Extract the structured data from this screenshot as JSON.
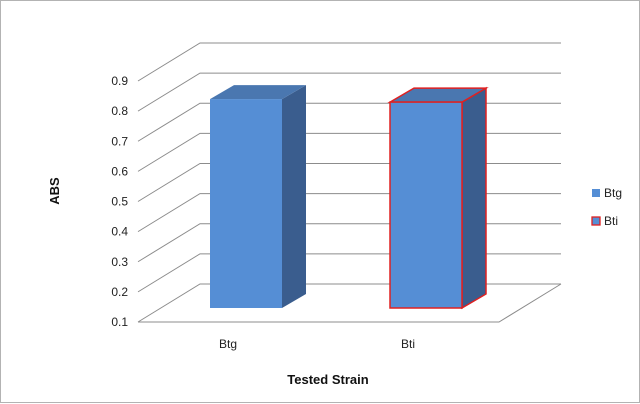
{
  "chart_data": {
    "type": "bar",
    "style": "3d-clustered-column",
    "categories": [
      "Btg",
      "Bti"
    ],
    "series": [
      {
        "name": "Btg",
        "values": [
          0.84,
          null
        ],
        "color": "#558ed5",
        "side_color": "#3a5d8e",
        "top_color": "#4a77b0",
        "border": "#558ed5"
      },
      {
        "name": "Bti",
        "values": [
          null,
          0.83
        ],
        "color": "#558ed5",
        "side_color": "#3a5d8e",
        "top_color": "#4a77b0",
        "border": "#e02020"
      }
    ],
    "ylim": [
      0.1,
      0.9
    ],
    "y_ticks": [
      "0.1",
      "0.2",
      "0.3",
      "0.4",
      "0.5",
      "0.6",
      "0.7",
      "0.8",
      "0.9"
    ],
    "xlabel": "Tested Strain",
    "ylabel": "ABS",
    "grid": true,
    "legend_position": "right"
  }
}
